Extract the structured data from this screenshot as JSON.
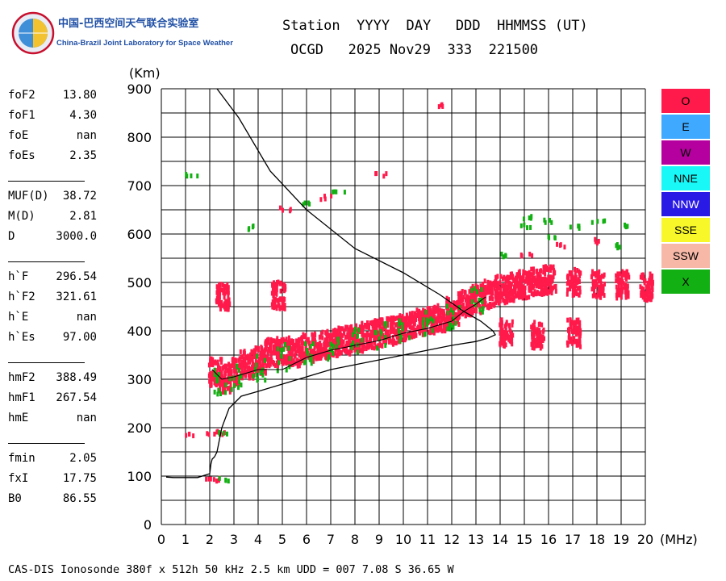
{
  "header": {
    "lab_name_cn": "中国-巴西空间天气联合实验室",
    "lab_name_en": "China-Brazil Joint Laboratory for Space Weather",
    "columns_line": "Station  YYYY  DAY   DDD  HHMMSS (UT)",
    "values_line": "OCGD   2025 Nov29  333  221500"
  },
  "params": [
    {
      "key": "foF2",
      "value": "13.80"
    },
    {
      "key": "foF1",
      "value": "4.30"
    },
    {
      "key": "foE",
      "value": "nan"
    },
    {
      "key": "foEs",
      "value": "2.35"
    },
    {
      "key": "MUF(D)",
      "value": "38.72"
    },
    {
      "key": "M(D)",
      "value": "2.81"
    },
    {
      "key": "D",
      "value": "3000.0"
    },
    {
      "key": "h`F",
      "value": "296.54"
    },
    {
      "key": "h`F2",
      "value": "321.61"
    },
    {
      "key": "h`E",
      "value": "nan"
    },
    {
      "key": "h`Es",
      "value": "97.00"
    },
    {
      "key": "hmF2",
      "value": "388.49"
    },
    {
      "key": "hmF1",
      "value": "267.54"
    },
    {
      "key": "hmE",
      "value": "nan"
    },
    {
      "key": "fmin",
      "value": "2.05"
    },
    {
      "key": "fxI",
      "value": "17.75"
    },
    {
      "key": "B0",
      "value": "86.55"
    }
  ],
  "legend": [
    {
      "label": "O",
      "color": "#ff1a4b"
    },
    {
      "label": "E",
      "color": "#3fa9ff"
    },
    {
      "label": "W",
      "color": "#b5009f"
    },
    {
      "label": "NNE",
      "color": "#19f7f7"
    },
    {
      "label": "NNW",
      "color": "#2a1ae6"
    },
    {
      "label": "SSE",
      "color": "#f7f72a"
    },
    {
      "label": "SSW",
      "color": "#f7b8a8"
    },
    {
      "label": "X",
      "color": "#12b012"
    }
  ],
  "footer": "CAS-DIS Ionosonde 380f x 512h 50 kHz 2.5 km UDD = 007 7.08 S 36.65 W",
  "chart_data": {
    "type": "scatter",
    "title": "",
    "xlabel": "(MHz)",
    "ylabel": "(Km)",
    "xlim": [
      0,
      20
    ],
    "ylim": [
      0,
      900
    ],
    "xticks": [
      0,
      1,
      2,
      3,
      4,
      5,
      6,
      7,
      8,
      9,
      10,
      11,
      12,
      13,
      14,
      15,
      16,
      17,
      18,
      19,
      20
    ],
    "yticks": [
      0,
      100,
      200,
      300,
      400,
      500,
      600,
      700,
      800,
      900
    ],
    "grid": true,
    "series": [
      {
        "name": "O",
        "points": [
          [
            2.2,
            320
          ],
          [
            2.6,
            305
          ],
          [
            3.0,
            320
          ],
          [
            3.5,
            335
          ],
          [
            4.0,
            345
          ],
          [
            4.5,
            360
          ],
          [
            5.0,
            365
          ],
          [
            5.5,
            360
          ],
          [
            6.0,
            370
          ],
          [
            6.5,
            375
          ],
          [
            7.0,
            380
          ],
          [
            7.5,
            385
          ],
          [
            8.0,
            390
          ],
          [
            8.5,
            395
          ],
          [
            9.0,
            400
          ],
          [
            9.5,
            405
          ],
          [
            10.0,
            410
          ],
          [
            10.5,
            420
          ],
          [
            11.0,
            425
          ],
          [
            11.5,
            430
          ],
          [
            12.0,
            445
          ],
          [
            12.5,
            460
          ],
          [
            13.0,
            470
          ],
          [
            13.5,
            480
          ],
          [
            14.0,
            490
          ],
          [
            14.5,
            495
          ],
          [
            15.0,
            500
          ],
          [
            15.5,
            505
          ],
          [
            16.0,
            510
          ],
          [
            17.0,
            505
          ],
          [
            18.0,
            500
          ],
          [
            19.0,
            500
          ],
          [
            20.0,
            495
          ],
          [
            2.0,
            100
          ],
          [
            2.3,
            98
          ],
          [
            2.1,
            195
          ],
          [
            2.4,
            192
          ],
          [
            1.2,
            192
          ],
          [
            11.5,
            870
          ],
          [
            9.0,
            728
          ],
          [
            5.1,
            655
          ],
          [
            6.7,
            680
          ],
          [
            4.8,
            478
          ],
          [
            2.5,
            475
          ],
          [
            15.0,
            560
          ],
          [
            16.5,
            580
          ],
          [
            18.0,
            590
          ],
          [
            14.2,
            400
          ],
          [
            15.5,
            395
          ],
          [
            17.0,
            400
          ]
        ]
      },
      {
        "name": "X",
        "points": [
          [
            2.4,
            300
          ],
          [
            3.0,
            310
          ],
          [
            4.0,
            330
          ],
          [
            5.0,
            350
          ],
          [
            6.0,
            360
          ],
          [
            7.0,
            370
          ],
          [
            8.0,
            385
          ],
          [
            9.0,
            395
          ],
          [
            10.0,
            405
          ],
          [
            11.0,
            425
          ],
          [
            12.0,
            430
          ],
          [
            13.0,
            470
          ],
          [
            14.0,
            560
          ],
          [
            15.0,
            620
          ],
          [
            16.0,
            630
          ],
          [
            17.0,
            620
          ],
          [
            18.0,
            630
          ],
          [
            19.0,
            620
          ],
          [
            2.6,
            97
          ],
          [
            2.5,
            192
          ],
          [
            1.2,
            728
          ],
          [
            3.5,
            618
          ],
          [
            6.0,
            668
          ],
          [
            7.3,
            695
          ],
          [
            15.0,
            640
          ],
          [
            16.2,
            600
          ],
          [
            19.0,
            580
          ]
        ]
      }
    ],
    "profile_curve": [
      [
        0.2,
        98
      ],
      [
        0.5,
        97
      ],
      [
        1.0,
        97
      ],
      [
        1.5,
        97
      ],
      [
        2.0,
        105
      ],
      [
        2.05,
        125
      ],
      [
        2.1,
        135
      ],
      [
        2.2,
        140
      ],
      [
        2.3,
        150
      ],
      [
        2.5,
        200
      ],
      [
        2.8,
        240
      ],
      [
        3.3,
        265
      ],
      [
        4.0,
        275
      ],
      [
        5.0,
        290
      ],
      [
        6.0,
        305
      ],
      [
        7.0,
        320
      ],
      [
        8.0,
        330
      ],
      [
        9.0,
        340
      ],
      [
        10.0,
        350
      ],
      [
        11.0,
        360
      ],
      [
        12.0,
        370
      ],
      [
        13.0,
        378
      ],
      [
        13.5,
        385
      ],
      [
        13.8,
        392
      ],
      [
        13.7,
        400
      ],
      [
        13.2,
        420
      ],
      [
        12.5,
        440
      ],
      [
        11.5,
        475
      ],
      [
        10.0,
        520
      ],
      [
        8.0,
        570
      ],
      [
        6.0,
        650
      ],
      [
        4.5,
        730
      ],
      [
        3.2,
        840
      ],
      [
        2.0,
        920
      ]
    ],
    "trace_curve": [
      [
        2.1,
        320
      ],
      [
        2.5,
        300
      ],
      [
        3.0,
        305
      ],
      [
        4.0,
        320
      ],
      [
        5.0,
        320
      ],
      [
        6.0,
        345
      ],
      [
        7.0,
        360
      ],
      [
        8.0,
        370
      ],
      [
        9.0,
        380
      ],
      [
        10.0,
        395
      ],
      [
        11.0,
        405
      ],
      [
        12.0,
        420
      ],
      [
        12.5,
        440
      ],
      [
        13.0,
        455
      ],
      [
        13.4,
        470
      ]
    ]
  }
}
